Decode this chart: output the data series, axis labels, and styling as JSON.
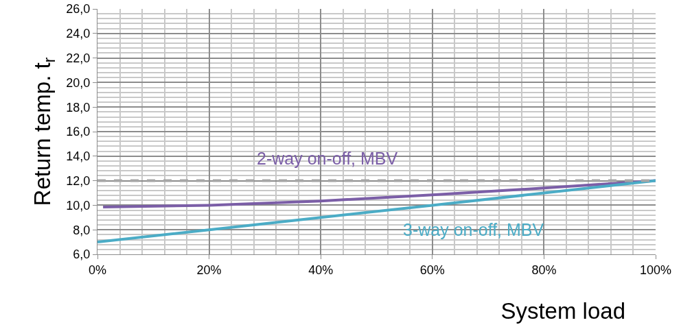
{
  "chart_data": {
    "type": "line",
    "xlabel": "System load",
    "ylabel": "Return temp. t$_{r}$",
    "xlim": [
      0,
      100
    ],
    "xticks": [
      {
        "value": 0,
        "label": "0%"
      },
      {
        "value": 20,
        "label": "20%"
      },
      {
        "value": 40,
        "label": "40%"
      },
      {
        "value": 60,
        "label": "60%"
      },
      {
        "value": 80,
        "label": "80%"
      },
      {
        "value": 100,
        "label": "100%"
      }
    ],
    "ylim": [
      6,
      26
    ],
    "yticks": [
      {
        "value": 6,
        "label": "6,0"
      },
      {
        "value": 8,
        "label": "8,0"
      },
      {
        "value": 10,
        "label": "10,0"
      },
      {
        "value": 12,
        "label": "12,0"
      },
      {
        "value": 14,
        "label": "14,0"
      },
      {
        "value": 16,
        "label": "16,0"
      },
      {
        "value": 18,
        "label": "18,0"
      },
      {
        "value": 20,
        "label": "20,0"
      },
      {
        "value": 22,
        "label": "22,0"
      },
      {
        "value": 24,
        "label": "24,0"
      },
      {
        "value": 26,
        "label": "26,0"
      }
    ],
    "grid": true,
    "legend": false,
    "marker": "none",
    "line_style": "solid",
    "ref_lines": [
      {
        "axis": "y",
        "value": 12,
        "color": "#a6a6a6",
        "line_style": "dashed"
      }
    ],
    "series": [
      {
        "name": "2-way on-off, MBV",
        "color": "#7b5ea7",
        "x": [
          1,
          20,
          40,
          60,
          80,
          100
        ],
        "values": [
          9.85,
          10.0,
          10.35,
          10.85,
          11.4,
          12.0
        ]
      },
      {
        "name": "3-way on-off, MBV",
        "color": "#4bacc6",
        "x": [
          0,
          20,
          40,
          60,
          80,
          100
        ],
        "values": [
          7.0,
          8.0,
          9.0,
          10.0,
          11.0,
          12.0
        ]
      }
    ]
  }
}
